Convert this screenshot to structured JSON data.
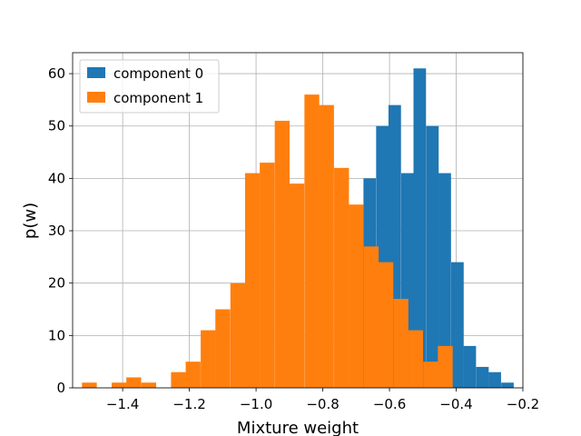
{
  "chart_data": {
    "type": "bar",
    "title": "",
    "xlabel": "Mixture weight",
    "ylabel": "p(w)",
    "xlim": [
      -1.55,
      -0.2
    ],
    "ylim": [
      0,
      64
    ],
    "x_ticks": [
      -1.4,
      -1.2,
      -1.0,
      -0.8,
      -0.6,
      -0.4,
      -0.2
    ],
    "x_tick_labels": [
      "−1.4",
      "−1.2",
      "−1.0",
      "−0.8",
      "−0.6",
      "−0.4",
      "−0.2"
    ],
    "y_ticks": [
      0,
      10,
      20,
      30,
      40,
      50,
      60
    ],
    "y_tick_labels": [
      "0",
      "10",
      "20",
      "30",
      "40",
      "50",
      "60"
    ],
    "grid": true,
    "legend_position": "top-left",
    "series": [
      {
        "name": "component 0",
        "color": "#1f77b4",
        "bin_width": 0.0375,
        "bin_starts": [
          -0.678,
          -0.64,
          -0.603,
          -0.565,
          -0.528,
          -0.49,
          -0.453,
          -0.415,
          -0.378,
          -0.34,
          -0.303,
          -0.265
        ],
        "values": [
          40,
          50,
          54,
          41,
          61,
          50,
          41,
          24,
          8,
          4,
          3,
          1
        ]
      },
      {
        "name": "component 1",
        "color": "#ff7f0e",
        "bin_width": 0.0445,
        "bin_starts": [
          -1.522,
          -1.478,
          -1.433,
          -1.389,
          -1.344,
          -1.3,
          -1.255,
          -1.211,
          -1.166,
          -1.122,
          -1.077,
          -1.033,
          -0.989,
          -0.944,
          -0.9,
          -0.855,
          -0.811,
          -0.766,
          -0.722,
          -0.677,
          -0.633,
          -0.588,
          -0.544,
          -0.499,
          -0.455,
          -0.411
        ],
        "values": [
          1,
          0,
          1,
          2,
          1,
          0,
          3,
          5,
          11,
          15,
          20,
          41,
          43,
          51,
          39,
          56,
          54,
          42,
          35,
          27,
          24,
          17,
          11,
          5,
          8,
          0
        ]
      }
    ]
  }
}
